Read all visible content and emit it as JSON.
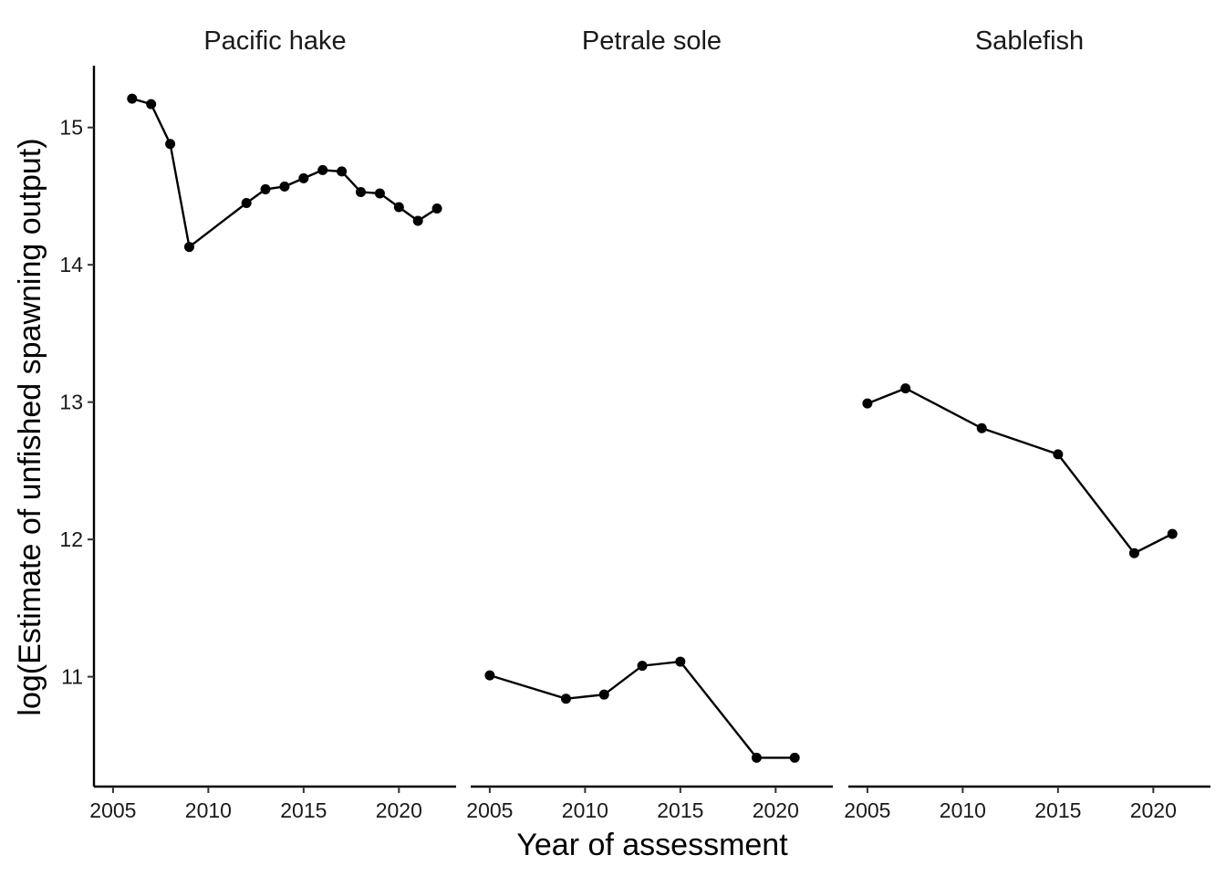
{
  "chart_data": {
    "type": "line",
    "facet_by": "species",
    "xlabel": "Year of assessment",
    "ylabel": "log(Estimate of unfished spawning output)",
    "xlim": [
      2004,
      2023
    ],
    "ylim": [
      10.2,
      15.45
    ],
    "x_ticks": [
      2005,
      2010,
      2015,
      2020
    ],
    "y_ticks": [
      11,
      12,
      13,
      14,
      15
    ],
    "grid": false,
    "legend": "none",
    "panels": [
      {
        "name": "Pacific hake",
        "x": [
          2006,
          2007,
          2008,
          2009,
          2012,
          2013,
          2014,
          2015,
          2016,
          2017,
          2018,
          2019,
          2020,
          2021,
          2022
        ],
        "y": [
          15.21,
          15.17,
          14.88,
          14.13,
          14.45,
          14.55,
          14.57,
          14.63,
          14.69,
          14.68,
          14.53,
          14.52,
          14.42,
          14.32,
          14.41
        ]
      },
      {
        "name": "Petrale sole",
        "x": [
          2005,
          2009,
          2011,
          2013,
          2015,
          2019,
          2021
        ],
        "y": [
          11.01,
          10.84,
          10.87,
          11.08,
          11.11,
          10.41,
          10.41
        ]
      },
      {
        "name": "Sablefish",
        "x": [
          2005,
          2007,
          2011,
          2015,
          2019,
          2021
        ],
        "y": [
          12.99,
          13.1,
          12.81,
          12.62,
          11.9,
          12.04
        ]
      }
    ]
  }
}
